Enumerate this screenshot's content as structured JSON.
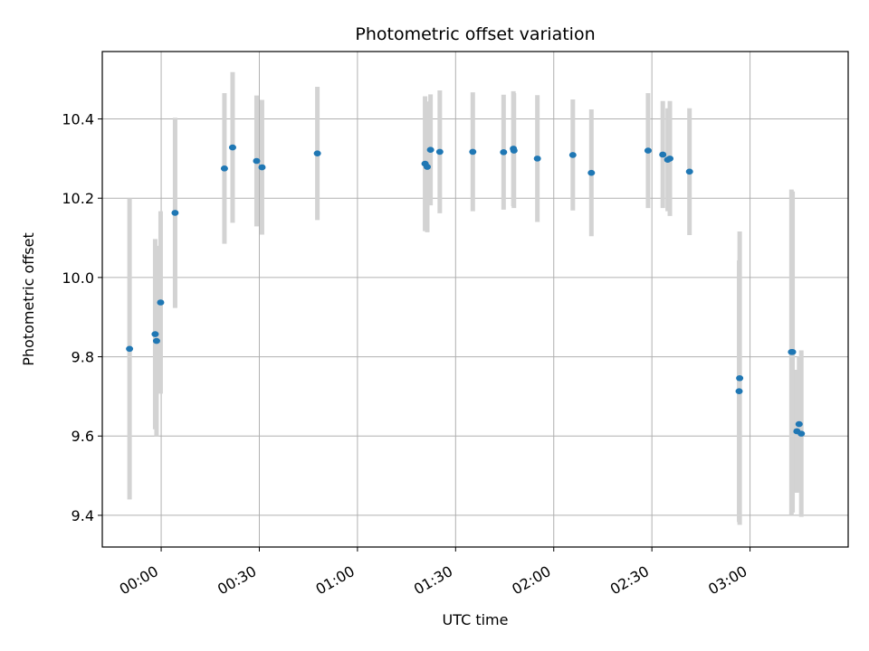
{
  "chart_data": {
    "type": "scatter",
    "title": "Photometric offset variation",
    "xlabel": "UTC time",
    "ylabel": "Photometric offset",
    "x_axis": {
      "type": "time",
      "range": [
        "23:42",
        "03:30"
      ],
      "ticks": [
        "00:00",
        "00:30",
        "01:00",
        "01:30",
        "02:00",
        "02:30",
        "03:00"
      ]
    },
    "y_axis": {
      "range": [
        9.32,
        10.57
      ],
      "ticks": [
        "9.4",
        "9.6",
        "9.8",
        "10.0",
        "10.2",
        "10.4"
      ]
    },
    "grid": true,
    "marker_color": "#1f77b4",
    "errorbar_color": "#d3d3d3",
    "points": [
      {
        "time": "23:50:20",
        "y": 9.82,
        "yerr": 0.38
      },
      {
        "time": "23:58:10",
        "y": 9.857,
        "yerr": 0.24
      },
      {
        "time": "23:58:35",
        "y": 9.84,
        "yerr": 0.24
      },
      {
        "time": "23:59:50",
        "y": 9.937,
        "yerr": 0.23
      },
      {
        "time": "00:04:15",
        "y": 10.163,
        "yerr": 0.24
      },
      {
        "time": "00:19:20",
        "y": 10.275,
        "yerr": 0.19
      },
      {
        "time": "00:21:50",
        "y": 10.328,
        "yerr": 0.19
      },
      {
        "time": "00:29:10",
        "y": 10.294,
        "yerr": 0.165
      },
      {
        "time": "00:30:50",
        "y": 10.278,
        "yerr": 0.17
      },
      {
        "time": "00:47:45",
        "y": 10.313,
        "yerr": 0.168
      },
      {
        "time": "01:20:40",
        "y": 10.287,
        "yerr": 0.17
      },
      {
        "time": "01:21:20",
        "y": 10.279,
        "yerr": 0.165
      },
      {
        "time": "01:22:20",
        "y": 10.322,
        "yerr": 0.14
      },
      {
        "time": "01:25:10",
        "y": 10.317,
        "yerr": 0.155
      },
      {
        "time": "01:35:15",
        "y": 10.317,
        "yerr": 0.15
      },
      {
        "time": "01:44:40",
        "y": 10.316,
        "yerr": 0.145
      },
      {
        "time": "01:47:40",
        "y": 10.325,
        "yerr": 0.145
      },
      {
        "time": "01:47:50",
        "y": 10.32,
        "yerr": 0.145
      },
      {
        "time": "01:55:00",
        "y": 10.3,
        "yerr": 0.16
      },
      {
        "time": "02:05:50",
        "y": 10.309,
        "yerr": 0.14
      },
      {
        "time": "02:11:30",
        "y": 10.264,
        "yerr": 0.16
      },
      {
        "time": "02:28:50",
        "y": 10.32,
        "yerr": 0.145
      },
      {
        "time": "02:33:20",
        "y": 10.31,
        "yerr": 0.135
      },
      {
        "time": "02:34:50",
        "y": 10.297,
        "yerr": 0.13
      },
      {
        "time": "02:35:30",
        "y": 10.3,
        "yerr": 0.145
      },
      {
        "time": "02:41:30",
        "y": 10.267,
        "yerr": 0.16
      },
      {
        "time": "02:56:50",
        "y": 9.746,
        "yerr": 0.37
      },
      {
        "time": "02:56:40",
        "y": 9.713,
        "yerr": 0.33
      },
      {
        "time": "03:12:40",
        "y": 9.812,
        "yerr": 0.41
      },
      {
        "time": "03:13:00",
        "y": 9.812,
        "yerr": 0.405
      },
      {
        "time": "03:14:20",
        "y": 9.612,
        "yerr": 0.155
      },
      {
        "time": "03:15:00",
        "y": 9.63,
        "yerr": 0.17
      },
      {
        "time": "03:15:40",
        "y": 9.606,
        "yerr": 0.21
      }
    ]
  }
}
